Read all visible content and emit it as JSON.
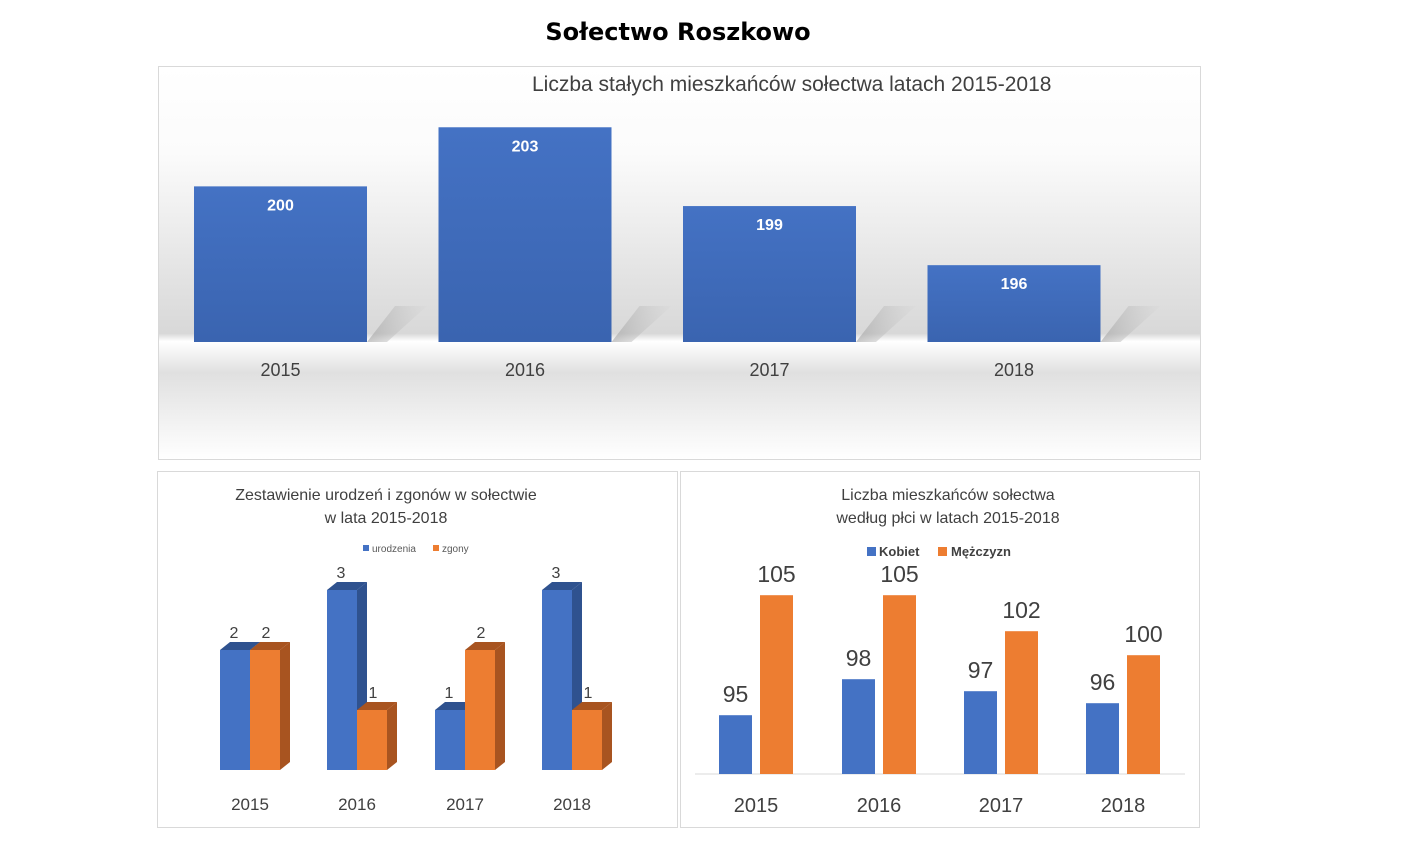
{
  "page": {
    "title": "Sołectwo Roszkowo"
  },
  "colors": {
    "blue": "#4472C4",
    "blue_dark": "#2F528F",
    "orange": "#ED7D31",
    "orange_dark": "#A85420",
    "text": "#404040"
  },
  "chart_data": [
    {
      "type": "bar",
      "title": "Liczba stałych mieszkańców sołectwa latach 2015-2018",
      "categories": [
        "2015",
        "2016",
        "2017",
        "2018"
      ],
      "values": [
        200,
        203,
        199,
        196
      ],
      "data_labels": [
        "200",
        "203",
        "199",
        "196"
      ],
      "legend": "none",
      "grid": false
    },
    {
      "type": "bar",
      "title": "Zestawienie urodzeń i zgonów w sołectwie",
      "subtitle": "w lata 2015-2018",
      "categories": [
        "2015",
        "2016",
        "2017",
        "2018"
      ],
      "series": [
        {
          "name": "urodzenia",
          "values": [
            2,
            3,
            1,
            3
          ],
          "labels": [
            "2",
            "3",
            "1",
            "3"
          ]
        },
        {
          "name": "zgony",
          "values": [
            2,
            1,
            2,
            1
          ],
          "labels": [
            "2",
            "1",
            "2",
            "1"
          ]
        }
      ],
      "ylim": [
        0,
        3
      ],
      "legend": "top",
      "grid": false,
      "style": "3d"
    },
    {
      "type": "bar",
      "title": "Liczba mieszkańców sołectwa",
      "subtitle": "według płci w latach 2015-2018",
      "categories": [
        "2015",
        "2016",
        "2017",
        "2018"
      ],
      "series": [
        {
          "name": "Kobiet",
          "values": [
            95,
            98,
            97,
            96
          ],
          "labels": [
            "95",
            "98",
            "97",
            "96"
          ]
        },
        {
          "name": "Mężczyzn",
          "values": [
            105,
            105,
            102,
            100
          ],
          "labels": [
            "105",
            "105",
            "102",
            "100"
          ]
        }
      ],
      "ylim": [
        80,
        108
      ],
      "legend": "top",
      "grid": false
    }
  ]
}
